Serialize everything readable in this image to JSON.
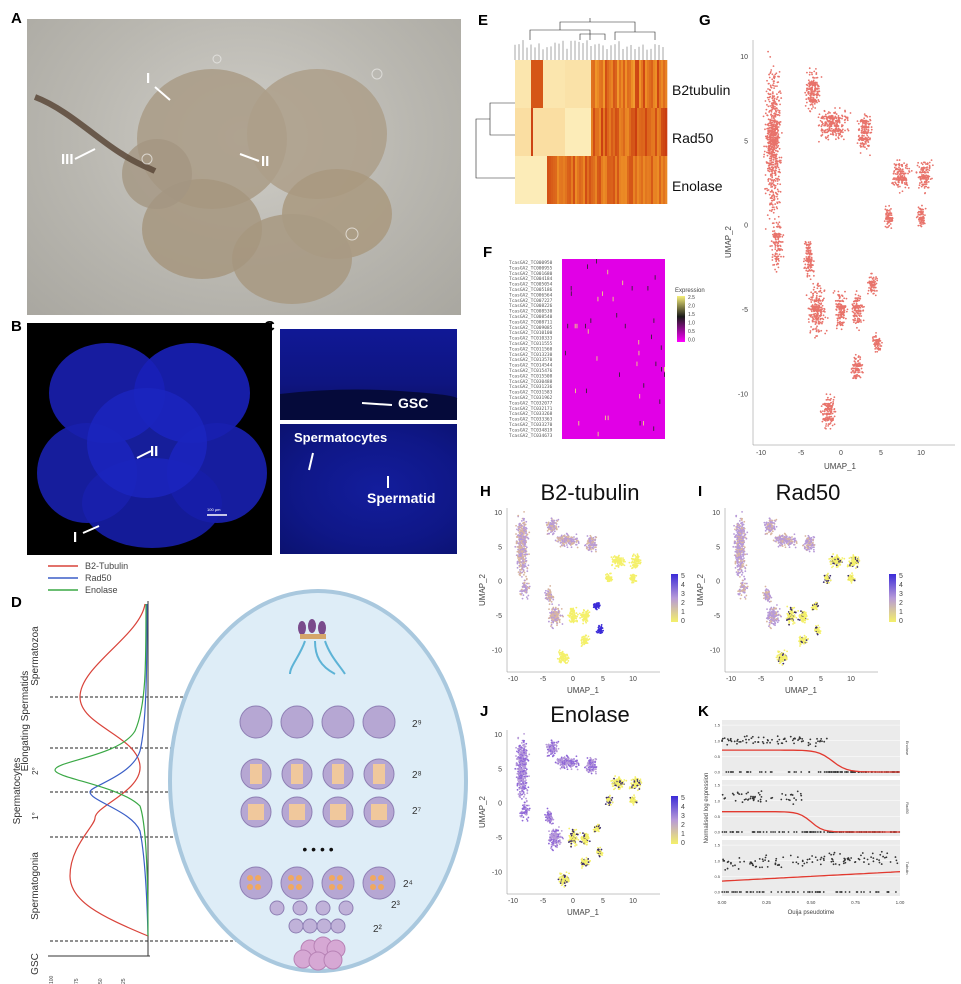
{
  "panels": {
    "A": {
      "label": "A",
      "annotations": [
        "I",
        "II",
        "III"
      ]
    },
    "B": {
      "label": "B",
      "annotations": [
        "II",
        "I"
      ],
      "scalebar": "100 µm"
    },
    "C": {
      "label": "C",
      "annotations": [
        "GSC",
        "Spermatocytes",
        "Spermatid"
      ]
    },
    "D": {
      "label": "D",
      "legend": [
        {
          "name": "B2-Tubulin",
          "color": "#d9433a"
        },
        {
          "name": "Rad50",
          "color": "#3b5fc7"
        },
        {
          "name": "Enolase",
          "color": "#3aa845"
        }
      ],
      "stages": [
        "Spermatozoa",
        "Elongating Spermatids",
        "Spermatocytes",
        "2°",
        "1°",
        "Spermatogonia",
        "GSC"
      ],
      "divisions": [
        "2⁹",
        "2⁸",
        "2⁷",
        "2⁴",
        "2³",
        "2²"
      ],
      "dots": "• • • •",
      "xticks": [
        "100",
        "75",
        "50",
        "25"
      ]
    },
    "E": {
      "label": "E",
      "rows": [
        "B2tubulin",
        "Rad50",
        "Enolase"
      ]
    },
    "F": {
      "label": "F",
      "legend_title": "Expression",
      "legend_ticks": [
        "2.5",
        "2.0",
        "1.5",
        "1.0",
        "0.5",
        "0.0"
      ],
      "genes": [
        "TcasGA2_TC000950",
        "TcasGA2_TC000955",
        "TcasGA2_TC001680",
        "TcasGA2_TC004184",
        "TcasGA2_TC005054",
        "TcasGA2_TC005186",
        "TcasGA2_TC006564",
        "TcasGA2_TC007227",
        "TcasGA2_TC008226",
        "TcasGA2_TC008530",
        "TcasGA2_TC008540",
        "TcasGA2_TC008711",
        "TcasGA2_TC009085",
        "TcasGA2_TC010100",
        "TcasGA2_TC010333",
        "TcasGA2_TC011555",
        "TcasGA2_TC011560",
        "TcasGA2_TC013230",
        "TcasGA2_TC013570",
        "TcasGA2_TC014544",
        "TcasGA2_TC015476",
        "TcasGA2_TC015508",
        "TcasGA2_TC030488",
        "TcasGA2_TC031236",
        "TcasGA2_TC031583",
        "TcasGA2_TC031962",
        "TcasGA2_TC032077",
        "TcasGA2_TC032171",
        "TcasGA2_TC033268",
        "TcasGA2_TC033363",
        "TcasGA2_TC033270",
        "TcasGA2_TC034819",
        "TcasGA2_TC034673"
      ]
    },
    "G": {
      "label": "G",
      "xlabel": "UMAP_1",
      "ylabel": "UMAP_2",
      "xticks": [
        "-10",
        "-5",
        "0",
        "5",
        "10"
      ],
      "yticks": [
        "10",
        "5",
        "0",
        "-5",
        "-10"
      ]
    },
    "H": {
      "label": "H",
      "title": "B2-tubulin",
      "xlabel": "UMAP_1",
      "ylabel": "UMAP_2",
      "xticks": [
        "-10",
        "-5",
        "0",
        "5",
        "10"
      ],
      "yticks": [
        "10",
        "5",
        "0",
        "-5",
        "-10"
      ],
      "colorbar": [
        "5",
        "4",
        "3",
        "2",
        "1",
        "0"
      ]
    },
    "I": {
      "label": "I",
      "title": "Rad50",
      "xlabel": "UMAP_1",
      "ylabel": "UMAP_2",
      "xticks": [
        "-10",
        "-5",
        "0",
        "5",
        "10"
      ],
      "yticks": [
        "10",
        "5",
        "0",
        "-5",
        "-10"
      ],
      "colorbar": [
        "5",
        "4",
        "3",
        "2",
        "1",
        "0"
      ]
    },
    "J": {
      "label": "J",
      "title": "Enolase",
      "xlabel": "UMAP_1",
      "ylabel": "UMAP_2",
      "xticks": [
        "-10",
        "-5",
        "0",
        "5",
        "10"
      ],
      "yticks": [
        "10",
        "5",
        "0",
        "-5",
        "-10"
      ],
      "colorbar": [
        "5",
        "4",
        "3",
        "2",
        "1",
        "0"
      ]
    },
    "K": {
      "label": "K",
      "xlabel": "Ouija pseudotime",
      "ylabel": "Normalised log expression",
      "xticks": [
        "0.00",
        "0.25",
        "0.50",
        "0.75",
        "1.00"
      ],
      "facets": [
        "Enolase",
        "Rad50",
        "Tubulin"
      ],
      "yticks_e": [
        "1.5",
        "1.0",
        "0.5",
        "0.0"
      ],
      "yticks_r": [
        "1.5",
        "1.0",
        "0.5",
        "0.0"
      ],
      "yticks_t": [
        "1.5",
        "1.0",
        "0.5",
        "0.0"
      ]
    }
  },
  "colors": {
    "umap_point": "#e8736b",
    "heatmap_magenta": "#e100e6",
    "heat_low": "#fdf5c8",
    "heat_high": "#c93a10",
    "blue_fluor": "#1a2bd0"
  }
}
